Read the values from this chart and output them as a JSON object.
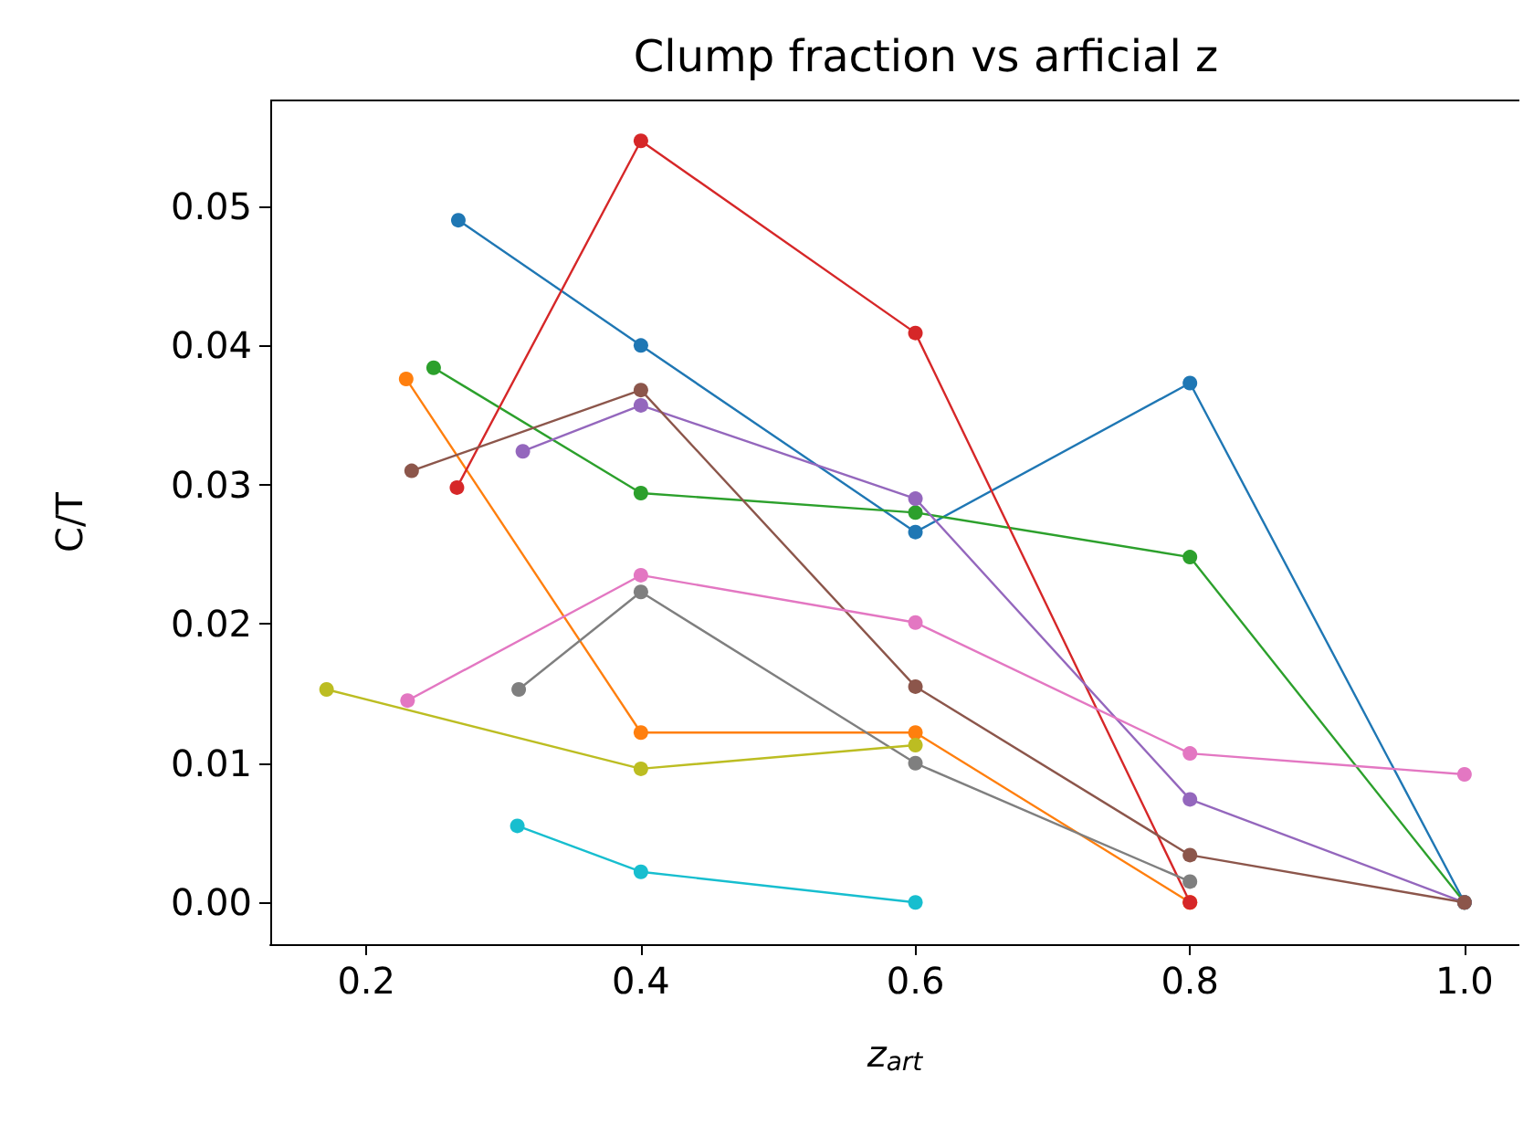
{
  "chart_data": {
    "type": "line",
    "title": "Clump fraction vs arficial z",
    "xlabel": "z$_{art}$",
    "ylabel": "C/T",
    "marker": "circle",
    "line_style": "solid",
    "grid": false,
    "xlim": [
      0.13,
      1.04
    ],
    "ylim": [
      -0.003,
      0.0576
    ],
    "xticks": [
      {
        "value": 0.2,
        "label": "0.2"
      },
      {
        "value": 0.4,
        "label": "0.4"
      },
      {
        "value": 0.6,
        "label": "0.6"
      },
      {
        "value": 0.8,
        "label": "0.8"
      },
      {
        "value": 1.0,
        "label": "1.0"
      }
    ],
    "yticks": [
      {
        "value": 0,
        "label": "0.00"
      },
      {
        "value": 0.01,
        "label": "0.01"
      },
      {
        "value": 0.02,
        "label": "0.02"
      },
      {
        "value": 0.03,
        "label": "0.03"
      },
      {
        "value": 0.04,
        "label": "0.04"
      },
      {
        "value": 0.05,
        "label": "0.05"
      }
    ],
    "series": [
      {
        "color": "#1f77b4",
        "x": [
          0.267,
          0.4,
          0.6,
          0.8,
          1.0
        ],
        "values": [
          0.049,
          0.04,
          0.0266,
          0.0373,
          0.0
        ]
      },
      {
        "color": "#ff7f0e",
        "x": [
          0.229,
          0.4,
          0.6,
          0.8
        ],
        "values": [
          0.0376,
          0.0122,
          0.0122,
          0.0
        ]
      },
      {
        "color": "#2ca02c",
        "x": [
          0.249,
          0.4,
          0.6,
          0.8,
          1.0
        ],
        "values": [
          0.0384,
          0.0294,
          0.028,
          0.0248,
          0.0
        ]
      },
      {
        "color": "#d62728",
        "x": [
          0.266,
          0.4,
          0.6,
          0.8
        ],
        "values": [
          0.0298,
          0.0547,
          0.0409,
          0.0
        ]
      },
      {
        "color": "#9467bd",
        "x": [
          0.314,
          0.4,
          0.6,
          0.8,
          1.0
        ],
        "values": [
          0.0324,
          0.0357,
          0.029,
          0.0074,
          0.0
        ]
      },
      {
        "color": "#8c564b",
        "x": [
          0.233,
          0.4,
          0.6,
          0.8,
          1.0
        ],
        "values": [
          0.031,
          0.0368,
          0.0155,
          0.0034,
          0.0
        ]
      },
      {
        "color": "#e377c2",
        "x": [
          0.23,
          0.4,
          0.6,
          0.8,
          1.0
        ],
        "values": [
          0.0145,
          0.0235,
          0.0201,
          0.0107,
          0.0092
        ]
      },
      {
        "color": "#7f7f7f",
        "x": [
          0.311,
          0.4,
          0.6,
          0.8
        ],
        "values": [
          0.0153,
          0.0223,
          0.01,
          0.0015
        ]
      },
      {
        "color": "#bcbd22",
        "x": [
          0.171,
          0.4,
          0.6
        ],
        "values": [
          0.0153,
          0.0096,
          0.0113
        ]
      },
      {
        "color": "#17becf",
        "x": [
          0.31,
          0.4,
          0.6
        ],
        "values": [
          0.0055,
          0.0022,
          0.0
        ]
      }
    ]
  }
}
